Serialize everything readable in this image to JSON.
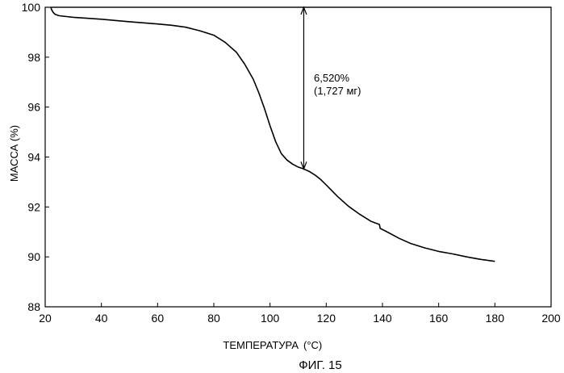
{
  "chart_data": {
    "type": "line",
    "xlabel": "ТЕМПЕРАТУРА",
    "xunit": "(°C)",
    "ylabel": "МАССА (%)",
    "xlim": [
      20,
      200
    ],
    "ylim": [
      88,
      100
    ],
    "xticks": [
      20,
      40,
      60,
      80,
      100,
      120,
      140,
      160,
      180,
      200
    ],
    "yticks": [
      88,
      90,
      92,
      94,
      96,
      98,
      100
    ],
    "grid": false,
    "series": [
      {
        "x": [
          22.0,
          22.3,
          22.8,
          23.5,
          25,
          30,
          40,
          50,
          60,
          65,
          70,
          75,
          80,
          84,
          88,
          91,
          94,
          96,
          98,
          100,
          102,
          104,
          106,
          108,
          110,
          112,
          114,
          116,
          118,
          120,
          124,
          128,
          132,
          136,
          138.9,
          139.2,
          142,
          146,
          150,
          155,
          160,
          165,
          170,
          175,
          180
        ],
        "values": [
          100.0,
          99.9,
          99.8,
          99.72,
          99.66,
          99.6,
          99.52,
          99.42,
          99.33,
          99.28,
          99.2,
          99.06,
          98.88,
          98.6,
          98.2,
          97.72,
          97.12,
          96.58,
          95.95,
          95.25,
          94.62,
          94.14,
          93.88,
          93.72,
          93.6,
          93.52,
          93.42,
          93.28,
          93.1,
          92.88,
          92.42,
          92.02,
          91.7,
          91.42,
          91.3,
          91.14,
          90.98,
          90.74,
          90.54,
          90.36,
          90.22,
          90.12,
          90.0,
          89.9,
          89.82
        ]
      }
    ],
    "reference_line_y": 100,
    "annotations": [
      {
        "type": "double-arrow",
        "x": 112,
        "y_from": 100,
        "y_to": 93.52,
        "line1": "6,520%",
        "line2": "(1,727 мг)"
      }
    ]
  },
  "caption": "ФИГ. 15"
}
